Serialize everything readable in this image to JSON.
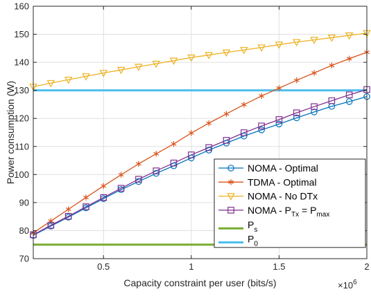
{
  "chart_data": {
    "type": "line",
    "xlabel": "Capacity constraint per user (bits/s)",
    "ylabel": "Power consumption (W)",
    "x_exponent_label": "×10",
    "x_exponent_value": "6",
    "xlim": [
      0.1,
      2.0
    ],
    "ylim": [
      70,
      160
    ],
    "x_ticks": [
      0.5,
      1,
      1.5,
      2
    ],
    "x_tick_labels": [
      "0.5",
      "1",
      "1.5",
      "2"
    ],
    "y_ticks": [
      70,
      80,
      90,
      100,
      110,
      120,
      130,
      140,
      150,
      160
    ],
    "y_tick_labels": [
      "70",
      "80",
      "90",
      "100",
      "110",
      "120",
      "130",
      "140",
      "150",
      "160"
    ],
    "grid": true,
    "legend_position": "bottom-right",
    "x": [
      0.1,
      0.2,
      0.3,
      0.4,
      0.5,
      0.6,
      0.7,
      0.8,
      0.9,
      1.0,
      1.1,
      1.2,
      1.3,
      1.4,
      1.5,
      1.6,
      1.7,
      1.8,
      1.9,
      2.0
    ],
    "series": [
      {
        "name": "NOMA - Optimal",
        "color": "#0072BD",
        "marker": "circle",
        "values": [
          78.3,
          81.6,
          84.8,
          88.1,
          91.4,
          94.6,
          97.5,
          100.4,
          103.1,
          105.9,
          108.7,
          111.2,
          113.7,
          115.9,
          118.0,
          120.2,
          122.3,
          124.3,
          126.0,
          127.8
        ]
      },
      {
        "name": "TDMA - Optimal",
        "color": "#D95319",
        "marker": "star",
        "values": [
          79.2,
          83.4,
          87.6,
          91.8,
          95.9,
          99.9,
          103.8,
          107.4,
          110.9,
          114.8,
          118.3,
          121.6,
          124.9,
          128.0,
          130.8,
          133.6,
          136.2,
          138.9,
          141.3,
          143.6
        ]
      },
      {
        "name": "NOMA - No DTx",
        "color": "#EDB120",
        "marker": "triangle-down",
        "values": [
          131.3,
          132.6,
          133.8,
          135.0,
          136.2,
          137.3,
          138.4,
          139.5,
          140.6,
          141.7,
          142.6,
          143.5,
          144.4,
          145.3,
          146.3,
          147.2,
          148.0,
          148.8,
          149.6,
          150.4
        ]
      },
      {
        "name_main": "NOMA - P",
        "name_sub1": "Tx",
        "name_mid": " = P",
        "name_sub2": "max",
        "color": "#7E2F8E",
        "marker": "square",
        "values": [
          78.5,
          81.9,
          85.1,
          88.5,
          91.8,
          95.1,
          98.3,
          101.3,
          104.1,
          107.0,
          109.6,
          112.2,
          114.9,
          117.3,
          119.6,
          122.0,
          124.2,
          126.3,
          128.4,
          130.3
        ]
      }
    ],
    "reference_lines": [
      {
        "label_main": "P",
        "label_sub": "s",
        "color": "#77AC30",
        "value": 75
      },
      {
        "label_main": "P",
        "label_sub": "0",
        "color": "#4DBEEE",
        "value": 130
      }
    ]
  }
}
